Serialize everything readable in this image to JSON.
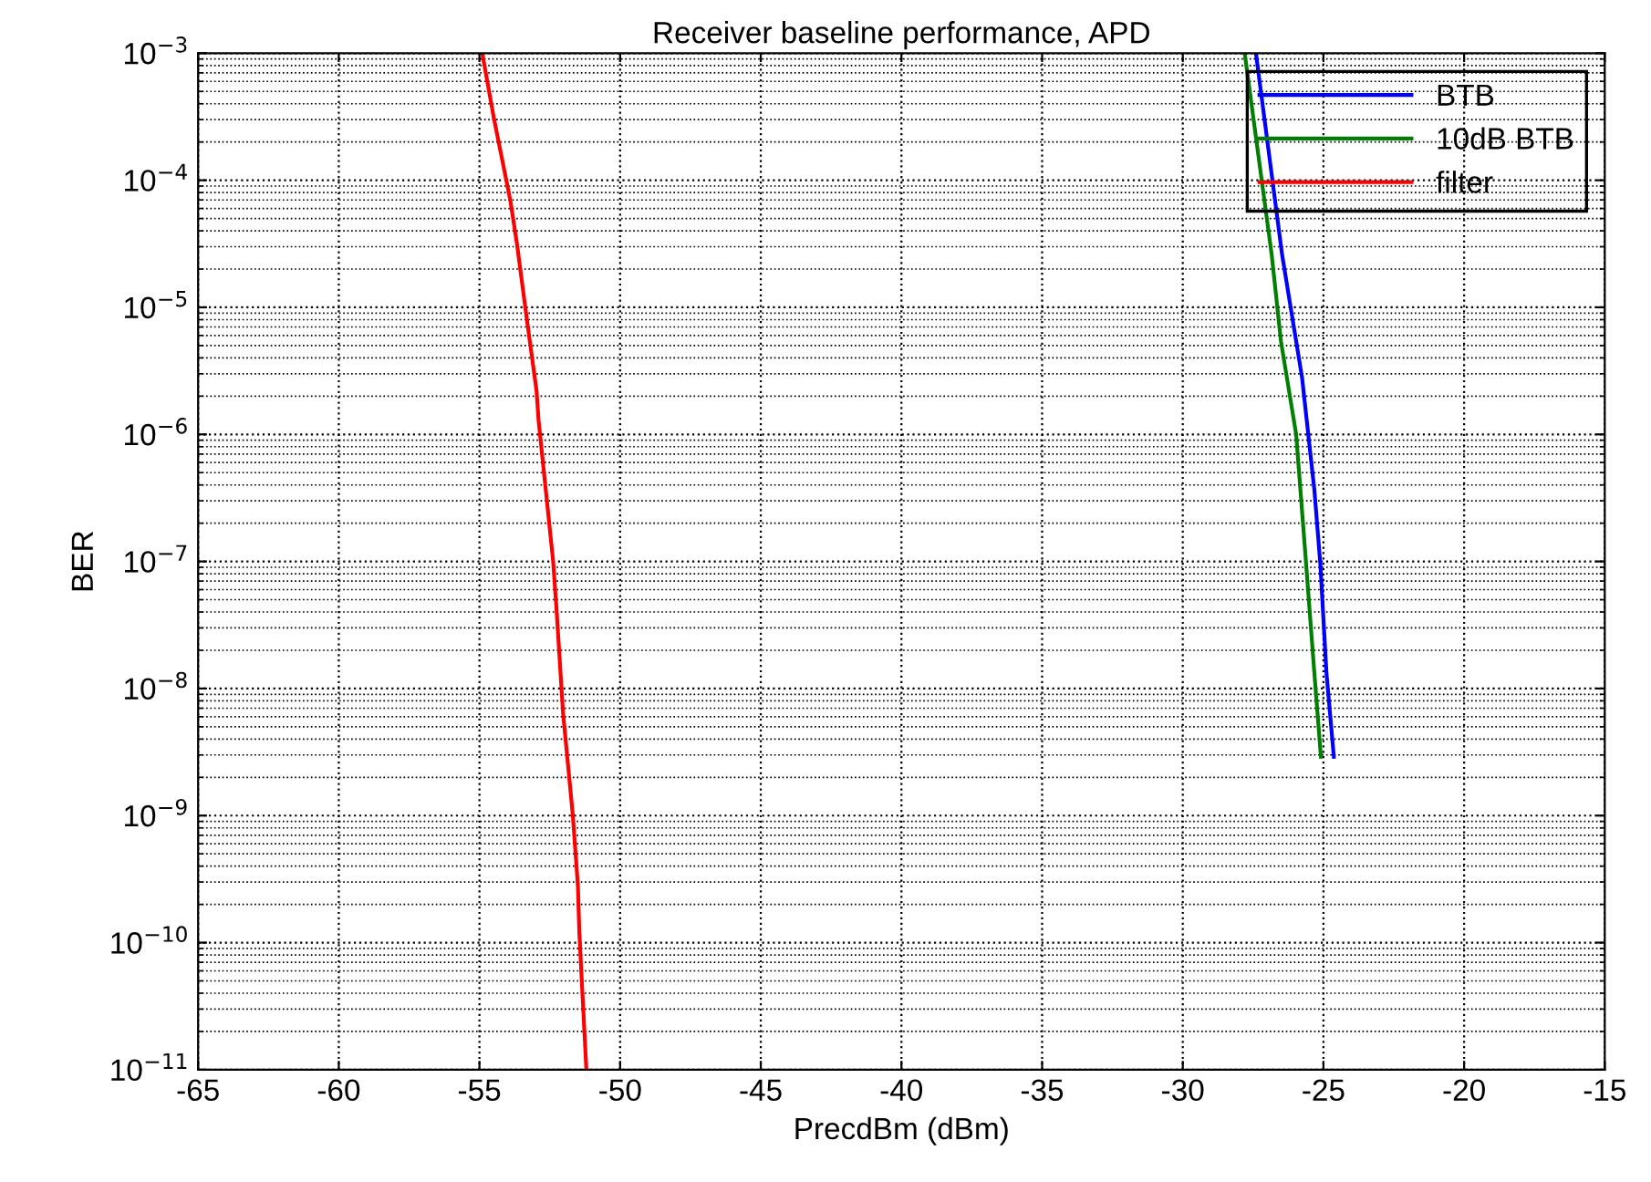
{
  "chart_data": {
    "type": "line",
    "title": "Receiver baseline performance, APD",
    "xlabel": "PrecdBm (dBm)",
    "ylabel": "BER",
    "log": "y",
    "grid": true,
    "legend": "top right",
    "marker": "none",
    "line_style": "solid",
    "xlim": [
      -65,
      -15
    ],
    "xticks": [
      -65,
      -60,
      -55,
      -50,
      -45,
      -40,
      -35,
      -30,
      -25,
      -20,
      -15
    ],
    "ylim": [
      1e-11,
      0.001
    ],
    "yticks": [
      {
        "value": 1e-11,
        "label": "10$^{−11}$"
      },
      {
        "value": 1e-10,
        "label": "10$^{−10}$"
      },
      {
        "value": 1e-09,
        "label": "10$^{−9}$"
      },
      {
        "value": 1e-08,
        "label": "10$^{−8}$"
      },
      {
        "value": 1e-07,
        "label": "10$^{−7}$"
      },
      {
        "value": 1e-06,
        "label": "10$^{−6}$"
      },
      {
        "value": 1e-05,
        "label": "10$^{−5}$"
      },
      {
        "value": 0.0001,
        "label": "10$^{−4}$"
      },
      {
        "value": 0.001,
        "label": "10$^{−3}$"
      }
    ],
    "series": [
      {
        "name": "BTB",
        "color": "#0000ff",
        "x": [
          -27.4,
          -26.47,
          -25.76,
          -25.32,
          -25.11,
          -24.89,
          -24.63
        ],
        "values": [
          0.001,
          2.6e-05,
          2.8e-06,
          3.6e-07,
          9.5e-08,
          1.3e-08,
          2.9e-09
        ]
      },
      {
        "name": "10dB BTB",
        "color": "#008000",
        "x": [
          -27.8,
          -26.84,
          -26.51,
          -25.97,
          -25.65,
          -25.32,
          -25.09
        ],
        "values": [
          0.001,
          2.6e-05,
          5.4e-06,
          1e-06,
          1.2e-07,
          1.3e-08,
          2.9e-09
        ]
      },
      {
        "name": "filter",
        "color": "#ff0000",
        "x": [
          -54.9,
          -54.49,
          -53.9,
          -53.67,
          -53.3,
          -52.97,
          -52.9,
          -52.38,
          -52.26,
          -52.03,
          -51.68,
          -51.5,
          -51.45,
          -51.2
        ],
        "values": [
          0.001,
          0.00031,
          6.9e-05,
          3.2e-05,
          7.6e-06,
          2.2e-06,
          1.3e-06,
          1e-07,
          4.2e-08,
          6.5e-09,
          1e-09,
          2.8e-10,
          1.2e-10,
          1e-11
        ]
      }
    ]
  }
}
